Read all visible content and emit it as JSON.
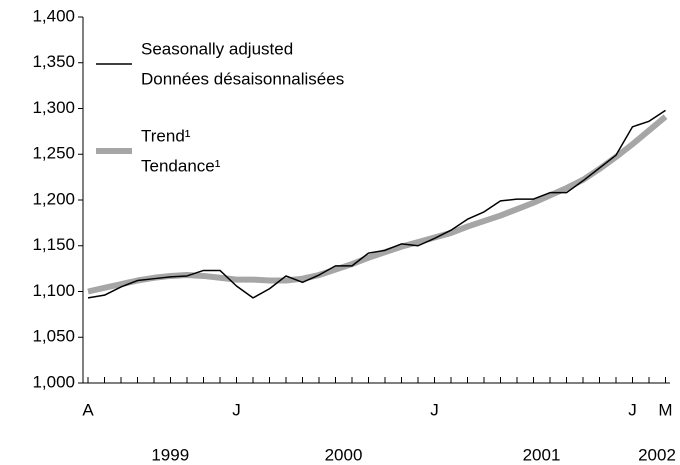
{
  "chart_data": {
    "type": "line",
    "categories": [
      "A",
      null,
      null,
      null,
      null,
      null,
      null,
      null,
      null,
      "J",
      null,
      null,
      null,
      null,
      null,
      null,
      null,
      null,
      null,
      null,
      null,
      "J",
      null,
      null,
      null,
      null,
      null,
      null,
      null,
      null,
      null,
      null,
      null,
      "J",
      null,
      "M"
    ],
    "years": [
      "1999",
      "2000",
      "2001",
      "2002"
    ],
    "series": [
      {
        "name": "Seasonally adjusted",
        "name_fr": "Données désaisonnalisées",
        "color": "#000000",
        "values": [
          1093,
          1096,
          1105,
          1112,
          1114,
          1116,
          1117,
          1123,
          1123,
          1106,
          1093,
          1103,
          1117,
          1110,
          1118,
          1128,
          1128,
          1142,
          1145,
          1152,
          1150,
          1158,
          1167,
          1179,
          1187,
          1199,
          1201,
          1201,
          1208,
          1208,
          1221,
          1235,
          1249,
          1280,
          1286,
          1298
        ]
      },
      {
        "name": "Trend¹",
        "name_fr": "Tendance¹",
        "color": "#a6a6a6",
        "values": [
          1100,
          1104,
          1108,
          1112,
          1115,
          1117,
          1118,
          1117,
          1115,
          1113,
          1113,
          1112,
          1112,
          1114,
          1118,
          1124,
          1130,
          1137,
          1143,
          1149,
          1154,
          1159,
          1164,
          1171,
          1177,
          1183,
          1190,
          1197,
          1205,
          1213,
          1222,
          1234,
          1247,
          1261,
          1276,
          1291
        ]
      }
    ],
    "ylim": [
      1000,
      1400
    ],
    "yticks": [
      {
        "value": 1000,
        "label": "1,000"
      },
      {
        "value": 1050,
        "label": "1,050"
      },
      {
        "value": 1100,
        "label": "1,100"
      },
      {
        "value": 1150,
        "label": "1,150"
      },
      {
        "value": 1200,
        "label": "1,200"
      },
      {
        "value": 1250,
        "label": "1,250"
      },
      {
        "value": 1300,
        "label": "1,300"
      },
      {
        "value": 1350,
        "label": "1,350"
      },
      {
        "value": 1400,
        "label": "1,400"
      }
    ],
    "grid": false
  }
}
